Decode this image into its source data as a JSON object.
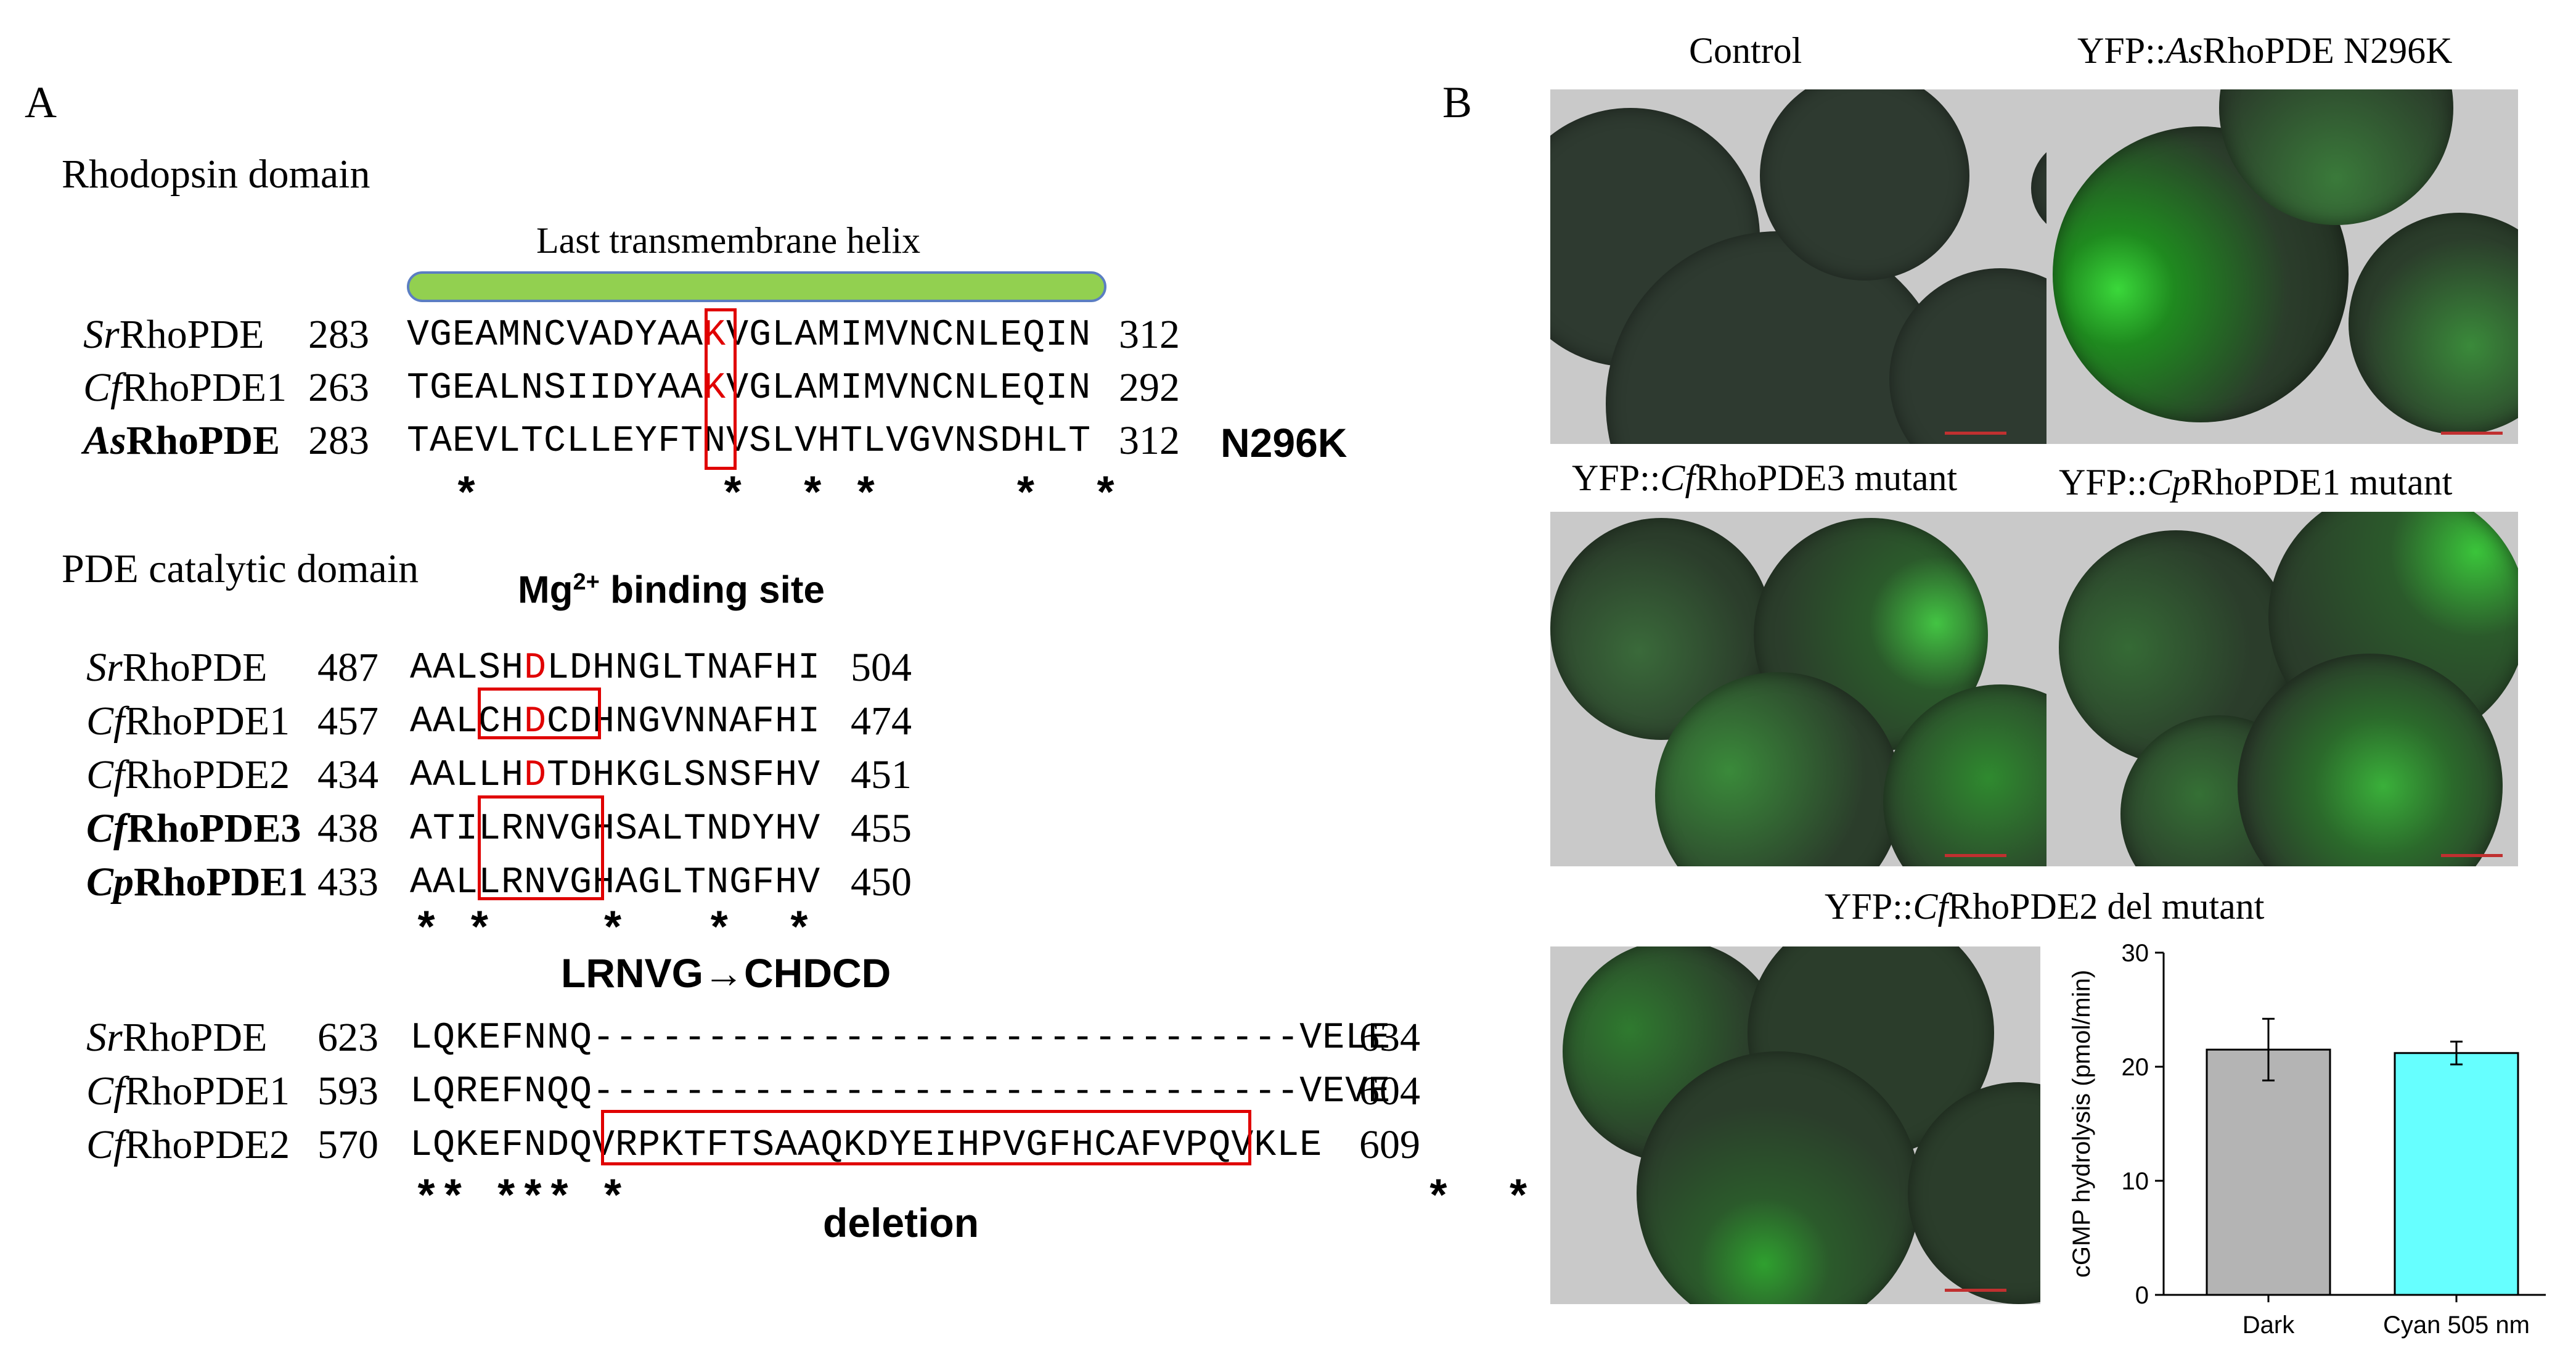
{
  "panelA": {
    "label": "A",
    "rhodopsin": {
      "title": "Rhodopsin domain",
      "helix_label": "Last transmembrane helix",
      "rows": [
        {
          "prefix": "Sr",
          "suffix": "RhoPDE",
          "start": "283",
          "pre": "VGEAMNCVADYAA",
          "hl": "K",
          "post": "VGLAMIMVNCNLEQIN",
          "end": "312"
        },
        {
          "prefix": "Cf",
          "suffix": "RhoPDE1",
          "start": "263",
          "pre": "TGEALNSIIDYAA",
          "hl": "K",
          "post": "VGLAMIMVNCNLEQIN",
          "end": "292"
        },
        {
          "prefix": "As",
          "suffix": "RhoPDE",
          "start": "283",
          "pre": "TAEVLTCLLEYFT",
          "hl": "",
          "mid": "N",
          "post": "VSLVHTLVGVNSDHLT",
          "end": "312"
        }
      ],
      "mutation_label": "N296K",
      "stars": "*         *  * *     *  *"
    },
    "pde": {
      "title": "PDE catalytic domain",
      "mg_label_main": "Mg",
      "mg_label_sup": "2+",
      "mg_label_rest": " binding site",
      "rows": [
        {
          "prefix": "Sr",
          "suffix": "RhoPDE",
          "start": "487",
          "pre": "AALSH",
          "hl": "D",
          "post": "LDHNGLTNAFHI",
          "end": "504"
        },
        {
          "prefix": "Cf",
          "suffix": "RhoPDE1",
          "start": "457",
          "pre": "AALCH",
          "hl": "D",
          "post": "CDHNGVNNAFHI",
          "end": "474"
        },
        {
          "prefix": "Cf",
          "suffix": "RhoPDE2",
          "start": "434",
          "pre": "AALLH",
          "hl": "D",
          "post": "TDHKGLSNSFHV",
          "end": "451"
        },
        {
          "prefix": "Cf",
          "suffix": "RhoPDE3",
          "start": "438",
          "pre": "ATILRNVGHSALTNDYHV",
          "hl": "",
          "post": "",
          "end": "455"
        },
        {
          "prefix": "Cp",
          "suffix": "RhoPDE1",
          "start": "433",
          "pre": "AALLRNVGHAGLTNGFHV",
          "hl": "",
          "post": "",
          "end": "450"
        }
      ],
      "stars": "* *    *   *  *",
      "mutation_label": "LRNVG→CHDCD"
    },
    "deletion": {
      "rows": [
        {
          "prefix": "Sr",
          "suffix": "RhoPDE",
          "start": "623",
          "seq": "LQKEFNNQ-------------------------------VELE",
          "end": "634"
        },
        {
          "prefix": "Cf",
          "suffix": "RhoPDE1",
          "start": "593",
          "seq": "LQREFNQQ-------------------------------VEVE",
          "end": "604"
        },
        {
          "prefix": "Cf",
          "suffix": "RhoPDE2",
          "start": "570",
          "seq": "LQKEFNDQVRPKTFTSAAQKDYEIHPVGFHCAFVPQVKLE",
          "end": "609"
        }
      ],
      "stars": "** *** *                              *  *",
      "label": "deletion"
    }
  },
  "panelB": {
    "label": "B",
    "images": [
      {
        "title": "Control"
      },
      {
        "title_pre": "YFP::",
        "title_italic": "As",
        "title_post": "RhoPDE N296K"
      },
      {
        "title_pre": "YFP::",
        "title_italic": "Cf",
        "title_post": "RhoPDE3 mutant"
      },
      {
        "title_pre": "YFP::",
        "title_italic": "Cp",
        "title_post": "RhoPDE1 mutant"
      },
      {
        "title_pre": "YFP::",
        "title_italic": "Cf",
        "title_post": "RhoPDE2 del mutant"
      }
    ],
    "colors": {
      "gray": "#b4b4b4",
      "cyan": "#66ffff",
      "highlight": "#e00000",
      "helix": "#92d050"
    }
  },
  "chart_data": {
    "type": "bar",
    "categories": [
      "Dark",
      "Cyan 505 nm"
    ],
    "values": [
      21.5,
      21.2
    ],
    "errors": [
      2.7,
      1.0
    ],
    "colors": [
      "#b4b4b4",
      "#66ffff"
    ],
    "ylabel": "cGMP hydrolysis (pmol/min)",
    "xlabel": "",
    "ylim": [
      0,
      30
    ],
    "yticks": [
      "0",
      "10",
      "20",
      "30"
    ]
  }
}
